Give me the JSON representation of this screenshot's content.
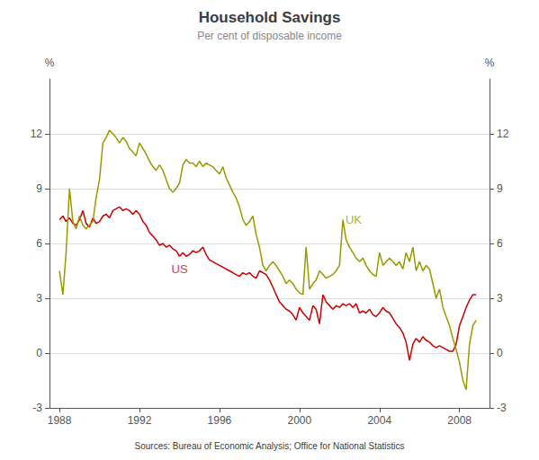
{
  "chart_data": {
    "type": "line",
    "title": "Household Savings",
    "subtitle": "Per cent of disposable income",
    "source": "Sources: Bureau of Economic Analysis; Office for National Statistics",
    "ylabel": "%",
    "y2label": "%",
    "xlim": [
      1987.5,
      2009.5
    ],
    "xticks": [
      1988,
      1992,
      1996,
      2000,
      2004,
      2008
    ],
    "ylim": [
      -3,
      15
    ],
    "yticks": [
      -3,
      0,
      3,
      6,
      9,
      12
    ],
    "y2lim": [
      -3,
      15
    ],
    "y2ticks": [
      -3,
      0,
      3,
      6,
      9,
      12
    ],
    "grid": "y",
    "legend": false,
    "x": [
      1988.0,
      1988.17,
      1988.33,
      1988.5,
      1988.67,
      1988.83,
      1989.0,
      1989.17,
      1989.33,
      1989.5,
      1989.67,
      1989.83,
      1990.0,
      1990.17,
      1990.33,
      1990.5,
      1990.67,
      1990.83,
      1991.0,
      1991.17,
      1991.33,
      1991.5,
      1991.67,
      1991.83,
      1992.0,
      1992.17,
      1992.33,
      1992.5,
      1992.67,
      1992.83,
      1993.0,
      1993.17,
      1993.33,
      1993.5,
      1993.67,
      1993.83,
      1994.0,
      1994.17,
      1994.33,
      1994.5,
      1994.67,
      1994.83,
      1995.0,
      1995.17,
      1995.33,
      1995.5,
      1995.67,
      1995.83,
      1996.0,
      1996.17,
      1996.33,
      1996.5,
      1996.67,
      1996.83,
      1997.0,
      1997.17,
      1997.33,
      1997.5,
      1997.67,
      1997.83,
      1998.0,
      1998.17,
      1998.33,
      1998.5,
      1998.67,
      1998.83,
      1999.0,
      1999.17,
      1999.33,
      1999.5,
      1999.67,
      1999.83,
      2000.0,
      2000.17,
      2000.33,
      2000.5,
      2000.67,
      2000.83,
      2001.0,
      2001.17,
      2001.33,
      2001.5,
      2001.67,
      2001.83,
      2002.0,
      2002.17,
      2002.33,
      2002.5,
      2002.67,
      2002.83,
      2003.0,
      2003.17,
      2003.33,
      2003.5,
      2003.67,
      2003.83,
      2004.0,
      2004.17,
      2004.33,
      2004.5,
      2004.67,
      2004.83,
      2005.0,
      2005.17,
      2005.33,
      2005.5,
      2005.67,
      2005.83,
      2006.0,
      2006.17,
      2006.33,
      2006.5,
      2006.67,
      2006.83,
      2007.0,
      2007.17,
      2007.33,
      2007.5,
      2007.67,
      2007.83,
      2008.0,
      2008.17,
      2008.33,
      2008.5,
      2008.67,
      2008.83
    ],
    "series": [
      {
        "name": "US",
        "color": "#cc0000",
        "values": [
          7.3,
          7.5,
          7.2,
          7.4,
          7.1,
          7.0,
          7.3,
          7.8,
          7.1,
          6.9,
          7.4,
          7.1,
          7.2,
          7.5,
          7.6,
          7.4,
          7.8,
          7.9,
          8.0,
          7.8,
          7.9,
          7.8,
          7.6,
          7.8,
          7.6,
          7.2,
          7.0,
          6.6,
          6.4,
          6.2,
          5.9,
          6.0,
          5.8,
          5.9,
          5.7,
          5.6,
          5.3,
          5.5,
          5.3,
          5.4,
          5.6,
          5.5,
          5.6,
          5.8,
          5.4,
          5.1,
          5.0,
          4.9,
          4.8,
          4.7,
          4.6,
          4.5,
          4.4,
          4.3,
          4.2,
          4.4,
          4.3,
          4.4,
          4.2,
          4.1,
          4.5,
          4.4,
          4.3,
          4.0,
          3.6,
          3.2,
          2.8,
          2.6,
          2.4,
          2.3,
          2.1,
          1.8,
          2.5,
          2.2,
          2.0,
          1.8,
          2.6,
          2.4,
          1.6,
          3.2,
          2.8,
          2.6,
          2.4,
          2.6,
          2.5,
          2.7,
          2.6,
          2.7,
          2.5,
          2.7,
          2.2,
          2.3,
          2.2,
          2.4,
          2.1,
          2.0,
          2.2,
          2.5,
          2.3,
          2.2,
          1.9,
          1.6,
          1.4,
          1.1,
          0.6,
          -0.4,
          0.5,
          0.8,
          0.6,
          0.9,
          0.7,
          0.6,
          0.4,
          0.3,
          0.4,
          0.3,
          0.2,
          0.1,
          0.1,
          0.5,
          1.5,
          2.0,
          2.5,
          2.9,
          3.2,
          3.2
        ]
      },
      {
        "name": "UK",
        "color": "#999900",
        "values": [
          4.5,
          3.2,
          5.5,
          9.0,
          7.2,
          6.8,
          7.5,
          7.0,
          6.8,
          7.0,
          7.2,
          8.5,
          9.5,
          11.5,
          11.8,
          12.2,
          12.0,
          11.8,
          11.5,
          11.8,
          11.6,
          11.2,
          11.0,
          10.8,
          11.5,
          11.2,
          10.9,
          10.5,
          10.2,
          10.0,
          10.3,
          10.0,
          9.5,
          9.0,
          8.8,
          9.0,
          9.3,
          10.3,
          10.6,
          10.4,
          10.4,
          10.2,
          10.5,
          10.2,
          10.4,
          10.3,
          10.2,
          10.0,
          9.8,
          10.2,
          9.6,
          9.2,
          8.8,
          8.5,
          8.0,
          7.3,
          7.0,
          7.2,
          7.5,
          6.5,
          5.8,
          4.8,
          4.5,
          4.8,
          5.0,
          4.8,
          4.5,
          4.2,
          3.8,
          4.0,
          3.8,
          3.5,
          3.3,
          3.2,
          5.8,
          3.5,
          3.8,
          4.0,
          4.5,
          4.3,
          4.1,
          4.2,
          4.3,
          4.5,
          4.8,
          7.3,
          6.2,
          5.8,
          5.5,
          5.2,
          5.0,
          5.2,
          4.8,
          4.5,
          4.3,
          4.2,
          5.5,
          4.8,
          5.0,
          5.2,
          5.0,
          4.8,
          5.0,
          4.6,
          5.5,
          5.0,
          5.8,
          4.5,
          5.0,
          4.5,
          4.8,
          4.6,
          3.8,
          3.0,
          3.5,
          2.5,
          2.0,
          1.5,
          0.8,
          0.2,
          -0.5,
          -1.5,
          -2.0,
          0.5,
          1.5,
          1.8
        ]
      }
    ],
    "annotations": [
      {
        "text": "US",
        "x": 1993.6,
        "y": 4.3,
        "color": "#cc0000"
      },
      {
        "text": "UK",
        "x": 2002.3,
        "y": 7.0,
        "color": "#999900"
      }
    ]
  }
}
